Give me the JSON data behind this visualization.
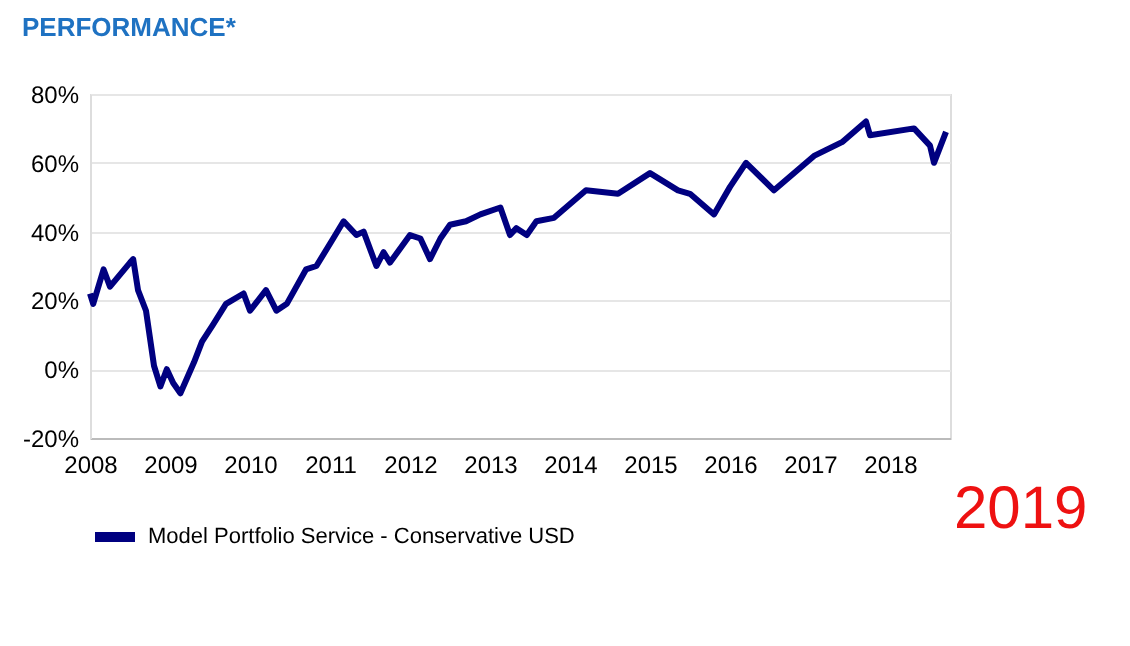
{
  "chart_data": {
    "type": "line",
    "title": "PERFORMANCE*",
    "x": [
      2008.0,
      2008.04,
      2008.17,
      2008.25,
      2008.5,
      2008.54,
      2008.6,
      2008.7,
      2008.8,
      2008.88,
      2008.96,
      2009.04,
      2009.13,
      2009.3,
      2009.4,
      2009.54,
      2009.7,
      2009.92,
      2010.0,
      2010.2,
      2010.33,
      2010.46,
      2010.7,
      2010.83,
      2011.04,
      2011.17,
      2011.33,
      2011.42,
      2011.58,
      2011.67,
      2011.75,
      2012.0,
      2012.13,
      2012.25,
      2012.38,
      2012.5,
      2012.7,
      2012.88,
      2013.13,
      2013.25,
      2013.33,
      2013.46,
      2013.58,
      2013.8,
      2014.2,
      2014.6,
      2015.0,
      2015.35,
      2015.5,
      2015.8,
      2016.0,
      2016.2,
      2016.55,
      2017.05,
      2017.4,
      2017.7,
      2017.75,
      2018.3,
      2018.5,
      2018.55,
      2018.7
    ],
    "series": [
      {
        "name": "Model Portfolio Service - Conservative USD",
        "color": "#000080",
        "values": [
          22,
          19,
          29,
          24,
          31,
          32,
          23,
          17,
          1,
          -5,
          0,
          -4,
          -7,
          2,
          8,
          13,
          19,
          22,
          17,
          23,
          17,
          19,
          29,
          30,
          38,
          43,
          39,
          40,
          30,
          34,
          31,
          39,
          38,
          32,
          38,
          42,
          43,
          45,
          47,
          39,
          41,
          39,
          43,
          44,
          52,
          51,
          57,
          52,
          51,
          45,
          53,
          60,
          52,
          62,
          66,
          72,
          68,
          70,
          65,
          60,
          69
        ]
      }
    ],
    "xlim": [
      2008,
      2018.75
    ],
    "xticks": [
      2008,
      2009,
      2010,
      2011,
      2012,
      2013,
      2014,
      2015,
      2016,
      2017,
      2018
    ],
    "ylim": [
      -20,
      80
    ],
    "yticks": [
      {
        "value": -20,
        "label": "-20%"
      },
      {
        "value": 0,
        "label": "0%"
      },
      {
        "value": 20,
        "label": "20%"
      },
      {
        "value": 40,
        "label": "40%"
      },
      {
        "value": 60,
        "label": "60%"
      },
      {
        "value": 80,
        "label": "80%"
      }
    ],
    "grid": "y",
    "legend": "bottom",
    "marker": "none",
    "line_style": "solid",
    "annotations": [
      "2019"
    ]
  }
}
